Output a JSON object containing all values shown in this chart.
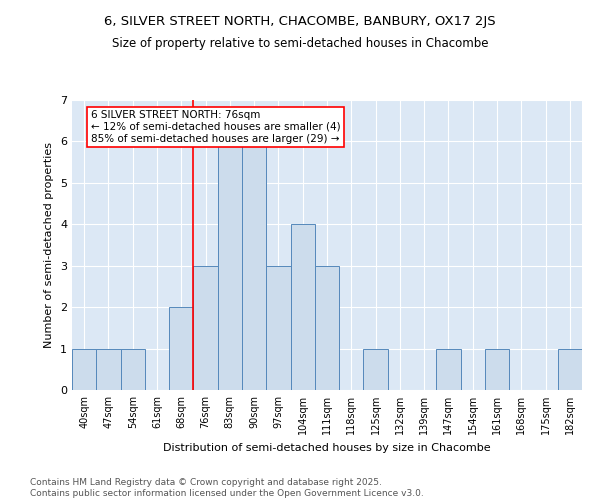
{
  "title1": "6, SILVER STREET NORTH, CHACOMBE, BANBURY, OX17 2JS",
  "title2": "Size of property relative to semi-detached houses in Chacombe",
  "xlabel": "Distribution of semi-detached houses by size in Chacombe",
  "ylabel": "Number of semi-detached properties",
  "bin_labels": [
    "40sqm",
    "47sqm",
    "54sqm",
    "61sqm",
    "68sqm",
    "76sqm",
    "83sqm",
    "90sqm",
    "97sqm",
    "104sqm",
    "111sqm",
    "118sqm",
    "125sqm",
    "132sqm",
    "139sqm",
    "147sqm",
    "154sqm",
    "161sqm",
    "168sqm",
    "175sqm",
    "182sqm"
  ],
  "bar_heights": [
    1,
    1,
    1,
    0,
    2,
    3,
    6,
    6,
    3,
    4,
    3,
    0,
    1,
    0,
    0,
    1,
    0,
    1,
    0,
    0,
    1
  ],
  "bar_color": "#ccdcec",
  "bar_edge_color": "#5588bb",
  "red_line_bin": 5,
  "annotation_line1": "6 SILVER STREET NORTH: 76sqm",
  "annotation_line2": "← 12% of semi-detached houses are smaller (4)",
  "annotation_line3": "85% of semi-detached houses are larger (29) →",
  "annotation_box_color": "white",
  "annotation_box_edge_color": "red",
  "footer_text": "Contains HM Land Registry data © Crown copyright and database right 2025.\nContains public sector information licensed under the Open Government Licence v3.0.",
  "ylim": [
    0,
    7
  ],
  "plot_bg_color": "#dce8f5",
  "title1_fontsize": 9.5,
  "title2_fontsize": 8.5,
  "xlabel_fontsize": 8,
  "ylabel_fontsize": 8,
  "tick_fontsize": 7,
  "footer_fontsize": 6.5,
  "annotation_fontsize": 7.5
}
